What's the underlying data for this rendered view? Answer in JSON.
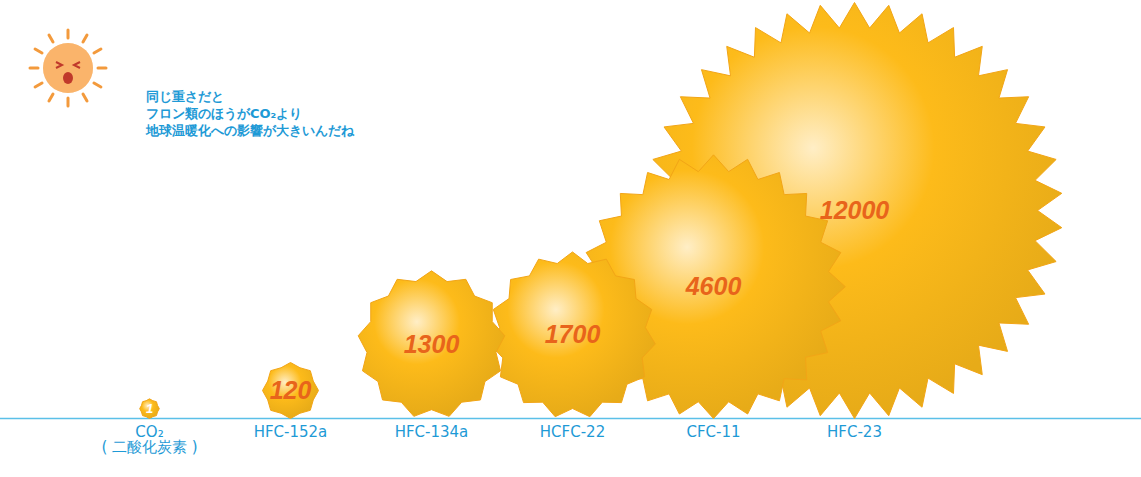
{
  "chart_data": {
    "type": "bubble",
    "annotation": "同じ重さだと\nフロン類のほうがCO₂より\n地球温暖化への影響が大きいんだね",
    "categories": [
      "CO₂\n( 二酸化炭素 )",
      "HFC-152a",
      "HFC-134a",
      "HCFC-22",
      "CFC-11",
      "HFC-23"
    ],
    "values": [
      1,
      120,
      1300,
      1700,
      4600,
      12000
    ],
    "color": "#fdbb1a",
    "data_labels": true,
    "tick_labels": "x"
  }
}
